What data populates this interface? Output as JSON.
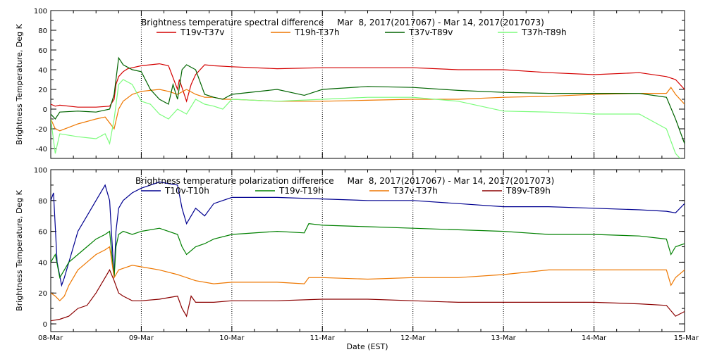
{
  "chart_data": [
    {
      "type": "line",
      "title": "Brightness temperature spectral difference     Mar  8, 2017(2017067) - Mar 14, 2017(2017073)",
      "ylabel": "Brightness Temperature, Deg K",
      "xlabel": "",
      "xlim": [
        0,
        7
      ],
      "ylim": [
        -50,
        100
      ],
      "yticks": [
        "-40",
        "-20",
        "0",
        "20",
        "40",
        "60",
        "80",
        "100"
      ],
      "grid": "dotted vertical lines at each day",
      "legend_position": "top",
      "series": [
        {
          "name": "T19v-T37v",
          "color": "#d40000",
          "x": [
            0.0,
            0.05,
            0.1,
            0.3,
            0.5,
            0.65,
            0.7,
            0.72,
            0.75,
            0.8,
            0.85,
            0.9,
            1.0,
            1.1,
            1.2,
            1.3,
            1.4,
            1.42,
            1.5,
            1.55,
            1.6,
            1.7,
            1.8,
            2.0,
            2.5,
            3.0,
            3.5,
            4.0,
            4.5,
            5.0,
            5.5,
            6.0,
            6.5,
            6.8,
            6.9,
            7.0
          ],
          "values": [
            5,
            3,
            4,
            2,
            2,
            3,
            10,
            25,
            33,
            38,
            41,
            42,
            44,
            45,
            46,
            44,
            20,
            30,
            8,
            25,
            35,
            45,
            44,
            43,
            41,
            42,
            42,
            42,
            40,
            40,
            37,
            35,
            37,
            33,
            30,
            20
          ]
        },
        {
          "name": "T19h-T37h",
          "color": "#ee7700",
          "x": [
            0.0,
            0.05,
            0.1,
            0.3,
            0.5,
            0.6,
            0.7,
            0.75,
            0.8,
            0.9,
            1.0,
            1.2,
            1.3,
            1.4,
            1.5,
            1.6,
            1.7,
            1.8,
            1.9,
            2.0,
            2.5,
            3.0,
            3.5,
            4.0,
            4.5,
            5.0,
            5.5,
            6.0,
            6.5,
            6.8,
            6.85,
            6.9,
            7.0
          ],
          "values": [
            -10,
            -20,
            -22,
            -15,
            -10,
            -8,
            -20,
            0,
            8,
            15,
            18,
            20,
            18,
            15,
            20,
            15,
            12,
            12,
            10,
            10,
            8,
            8,
            9,
            10,
            10,
            12,
            13,
            15,
            16,
            16,
            22,
            15,
            5
          ]
        },
        {
          "name": "T37v-T89v",
          "color": "#006400",
          "x": [
            0.0,
            0.05,
            0.1,
            0.3,
            0.5,
            0.65,
            0.7,
            0.75,
            0.8,
            0.9,
            1.0,
            1.1,
            1.2,
            1.3,
            1.35,
            1.4,
            1.45,
            1.5,
            1.6,
            1.7,
            1.8,
            1.9,
            2.0,
            2.5,
            2.8,
            3.0,
            3.5,
            4.0,
            4.5,
            5.0,
            5.5,
            6.0,
            6.5,
            6.8,
            6.9,
            7.0
          ],
          "values": [
            -5,
            -10,
            -3,
            -2,
            -3,
            0,
            15,
            52,
            45,
            40,
            38,
            20,
            10,
            5,
            25,
            10,
            40,
            45,
            40,
            15,
            12,
            10,
            15,
            20,
            14,
            20,
            23,
            22,
            19,
            17,
            16,
            16,
            16,
            12,
            -10,
            -35
          ]
        },
        {
          "name": "T37h-T89h",
          "color": "#7cfc7c",
          "x": [
            0.0,
            0.05,
            0.1,
            0.3,
            0.5,
            0.6,
            0.65,
            0.7,
            0.75,
            0.8,
            0.9,
            1.0,
            1.1,
            1.2,
            1.3,
            1.4,
            1.5,
            1.6,
            1.7,
            1.8,
            1.9,
            2.0,
            2.5,
            3.0,
            3.5,
            4.0,
            4.5,
            5.0,
            5.5,
            6.0,
            6.5,
            6.8,
            6.9,
            7.0
          ],
          "values": [
            -10,
            -45,
            -25,
            -28,
            -30,
            -25,
            -35,
            -10,
            25,
            30,
            25,
            8,
            5,
            -5,
            -10,
            0,
            -5,
            10,
            5,
            3,
            0,
            10,
            8,
            10,
            12,
            12,
            8,
            -2,
            -3,
            -5,
            -5,
            -20,
            -45,
            -55
          ]
        }
      ]
    },
    {
      "type": "line",
      "title": "Brightness temperature polarization difference     Mar  8, 2017(2017067) - Mar 14, 2017(2017073)",
      "ylabel": "Brightness Temperature, Deg K",
      "xlabel": "Date (EST)",
      "xlim": [
        0,
        7
      ],
      "ylim": [
        -5,
        100
      ],
      "yticks": [
        "0",
        "20",
        "40",
        "60",
        "80",
        "100"
      ],
      "xticks": [
        "08-Mar",
        "09-Mar",
        "10-Mar",
        "11-Mar",
        "12-Mar",
        "13-Mar",
        "14-Mar",
        "15-Mar"
      ],
      "grid": "dotted vertical lines at each day",
      "legend_position": "top",
      "series": [
        {
          "name": "T10v-T10h",
          "color": "#000090",
          "x": [
            0.0,
            0.03,
            0.07,
            0.12,
            0.15,
            0.2,
            0.3,
            0.4,
            0.5,
            0.55,
            0.6,
            0.65,
            0.7,
            0.72,
            0.75,
            0.8,
            0.9,
            1.0,
            1.2,
            1.4,
            1.45,
            1.5,
            1.55,
            1.6,
            1.7,
            1.8,
            2.0,
            2.5,
            3.0,
            3.5,
            4.0,
            4.5,
            5.0,
            5.5,
            6.0,
            6.5,
            6.8,
            6.9,
            7.0
          ],
          "values": [
            80,
            85,
            40,
            25,
            30,
            40,
            60,
            70,
            80,
            85,
            90,
            80,
            30,
            60,
            75,
            80,
            85,
            88,
            92,
            90,
            75,
            65,
            70,
            75,
            70,
            78,
            82,
            82,
            81,
            80,
            80,
            78,
            76,
            76,
            75,
            74,
            73,
            72,
            78
          ]
        },
        {
          "name": "T19v-T19h",
          "color": "#008000",
          "x": [
            0.0,
            0.05,
            0.1,
            0.15,
            0.2,
            0.3,
            0.4,
            0.5,
            0.6,
            0.65,
            0.7,
            0.72,
            0.75,
            0.8,
            0.9,
            1.0,
            1.2,
            1.4,
            1.45,
            1.5,
            1.6,
            1.7,
            1.8,
            2.0,
            2.5,
            2.8,
            2.85,
            3.0,
            3.5,
            4.0,
            4.5,
            5.0,
            5.5,
            6.0,
            6.5,
            6.8,
            6.85,
            6.9,
            7.0
          ],
          "values": [
            40,
            45,
            30,
            35,
            40,
            45,
            50,
            55,
            58,
            60,
            30,
            50,
            58,
            60,
            58,
            60,
            62,
            58,
            50,
            45,
            50,
            52,
            55,
            58,
            60,
            59,
            65,
            64,
            63,
            62,
            61,
            60,
            58,
            58,
            57,
            55,
            45,
            50,
            52
          ]
        },
        {
          "name": "T37v-T37h",
          "color": "#ee7700",
          "x": [
            0.0,
            0.05,
            0.1,
            0.15,
            0.2,
            0.3,
            0.4,
            0.5,
            0.6,
            0.65,
            0.7,
            0.72,
            0.75,
            0.8,
            0.9,
            1.0,
            1.2,
            1.4,
            1.5,
            1.6,
            1.8,
            2.0,
            2.5,
            2.8,
            2.85,
            3.0,
            3.5,
            4.0,
            4.5,
            5.0,
            5.5,
            6.0,
            6.5,
            6.8,
            6.85,
            6.9,
            7.0
          ],
          "values": [
            20,
            18,
            15,
            18,
            25,
            35,
            40,
            45,
            48,
            50,
            30,
            32,
            35,
            36,
            38,
            37,
            35,
            32,
            30,
            28,
            26,
            27,
            27,
            26,
            30,
            30,
            29,
            30,
            30,
            32,
            35,
            35,
            35,
            35,
            25,
            30,
            35
          ]
        },
        {
          "name": "T89v-T89h",
          "color": "#8b0000",
          "x": [
            0.0,
            0.1,
            0.2,
            0.3,
            0.4,
            0.5,
            0.6,
            0.65,
            0.7,
            0.75,
            0.8,
            0.9,
            1.0,
            1.2,
            1.4,
            1.45,
            1.5,
            1.55,
            1.6,
            1.8,
            2.0,
            2.5,
            3.0,
            3.5,
            4.0,
            4.5,
            5.0,
            5.5,
            6.0,
            6.5,
            6.8,
            6.9,
            7.0
          ],
          "values": [
            2,
            3,
            5,
            10,
            12,
            20,
            30,
            35,
            28,
            20,
            18,
            15,
            15,
            16,
            18,
            10,
            5,
            18,
            14,
            14,
            15,
            15,
            16,
            16,
            15,
            14,
            14,
            14,
            14,
            13,
            12,
            5,
            8
          ]
        }
      ]
    }
  ]
}
